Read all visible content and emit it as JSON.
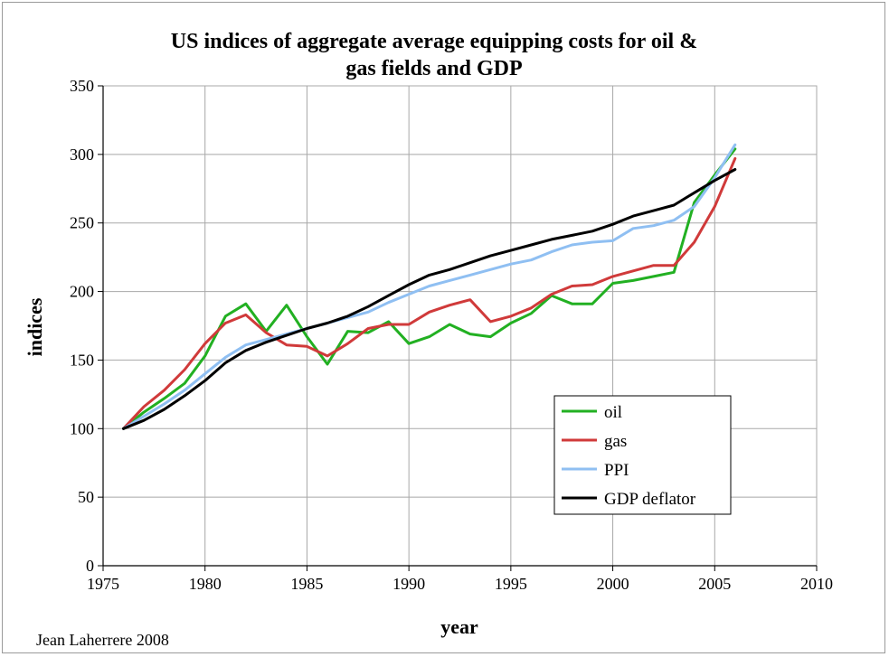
{
  "chart_data": {
    "type": "line",
    "title_lines": [
      "US indices of aggregate average equipping costs for oil &",
      "gas fields and GDP"
    ],
    "xlabel": "year",
    "ylabel": "indices",
    "xlim": [
      1975,
      2010
    ],
    "ylim": [
      0,
      350
    ],
    "xticks": [
      1975,
      1980,
      1985,
      1990,
      1995,
      2000,
      2005,
      2010
    ],
    "yticks": [
      0,
      50,
      100,
      150,
      200,
      250,
      300,
      350
    ],
    "grid": true,
    "legend_position": "bottom-right",
    "x": [
      1976,
      1977,
      1978,
      1979,
      1980,
      1981,
      1982,
      1983,
      1984,
      1985,
      1986,
      1987,
      1988,
      1989,
      1990,
      1991,
      1992,
      1993,
      1994,
      1995,
      1996,
      1997,
      1998,
      1999,
      2000,
      2001,
      2002,
      2003,
      2004,
      2005,
      2006
    ],
    "series": [
      {
        "name": "oil",
        "color": "#22b022",
        "values": [
          100,
          112,
          122,
          133,
          153,
          182,
          191,
          171,
          190,
          167,
          147,
          171,
          170,
          178,
          162,
          167,
          176,
          169,
          167,
          177,
          184,
          197,
          191,
          191,
          206,
          208,
          211,
          214,
          265,
          285,
          304
        ]
      },
      {
        "name": "gas",
        "color": "#d03a3a",
        "values": [
          100,
          116,
          128,
          143,
          162,
          177,
          183,
          170,
          161,
          160,
          153,
          162,
          173,
          176,
          176,
          185,
          190,
          194,
          178,
          182,
          188,
          198,
          204,
          205,
          211,
          215,
          219,
          219,
          236,
          262,
          297
        ]
      },
      {
        "name": "PPI",
        "color": "#8fbff2",
        "values": [
          100,
          109,
          118,
          128,
          140,
          152,
          161,
          165,
          169,
          173,
          177,
          181,
          185,
          192,
          198,
          204,
          208,
          212,
          216,
          220,
          223,
          229,
          234,
          236,
          237,
          246,
          248,
          252,
          262,
          283,
          307
        ]
      },
      {
        "name": "GDP deflator",
        "color": "#000000",
        "values": [
          100,
          106,
          114,
          124,
          135,
          148,
          157,
          163,
          168,
          173,
          177,
          182,
          189,
          197,
          205,
          212,
          216,
          221,
          226,
          230,
          234,
          238,
          241,
          244,
          249,
          255,
          259,
          263,
          272,
          281,
          289
        ]
      }
    ]
  },
  "credit": "Jean Laherrere 2008"
}
